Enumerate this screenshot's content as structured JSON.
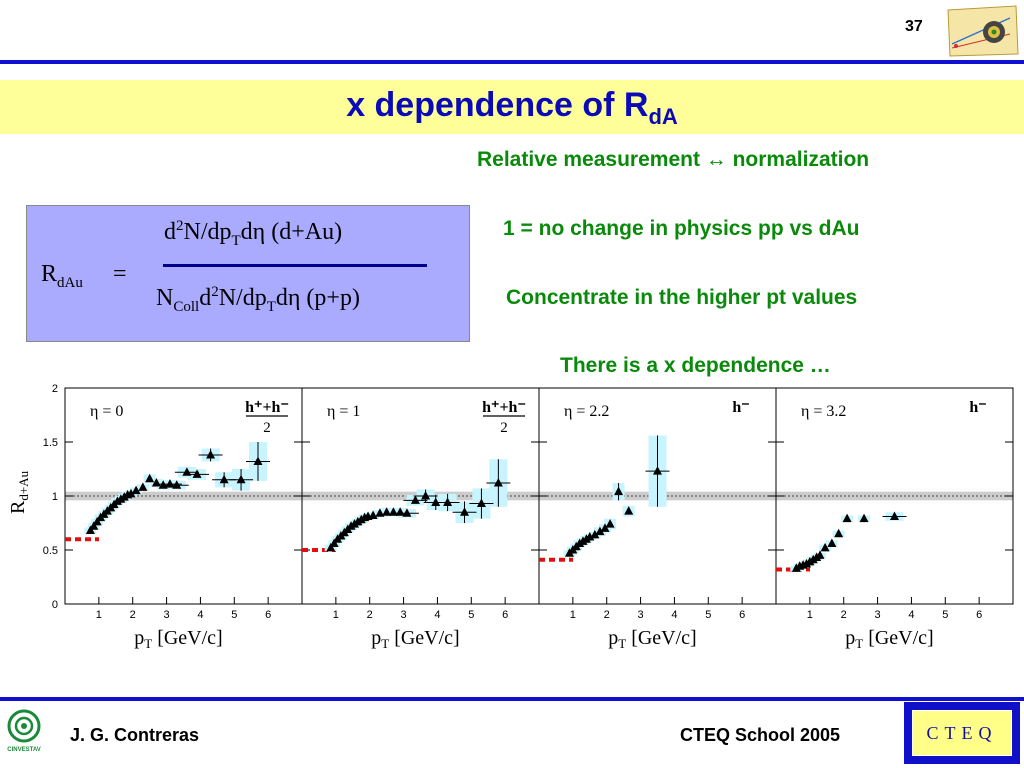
{
  "slide": {
    "number": "37",
    "title_main": "x dependence of R",
    "title_sub": "dA"
  },
  "notes": {
    "line1": "Relative measurement ↔ normalization",
    "line2": "1 = no change in physics pp vs dAu",
    "line3": "Concentrate in the higher pt values",
    "line4": "There is a x dependence …"
  },
  "formula": {
    "lhs_main": "R",
    "lhs_sub": "dAu",
    "equals": "=",
    "num_a": "d",
    "num_sup": "2",
    "num_b": "N/dp",
    "num_sub": "T",
    "num_c": "dη (d+Au)",
    "den_a": "N",
    "den_sub1": "Coll",
    "den_b": "d",
    "den_sup": "2",
    "den_c": "N/dp",
    "den_sub2": "T",
    "den_d": "dη (p+p)"
  },
  "footer": {
    "author": "J. G. Contreras",
    "event": "CTEQ School 2005",
    "logo_text": "CTEQ",
    "cinvestav_text": "CINVESTAV"
  },
  "colors": {
    "accent_blue": "#1010d0",
    "title_band": "#ffff99",
    "note_green": "#0a8a0a",
    "formula_bg": "#aaaaff",
    "error_box": "#c8f4ff",
    "ref_band": "#cccccc",
    "norm_marker": "#e01010"
  },
  "chart_data": {
    "type": "scatter",
    "ylabel": "R",
    "ylabel_sub": "d+Au",
    "xlabel": "p",
    "xlabel_sub": "T",
    "xlabel_unit": " [GeV/c]",
    "ylim": [
      0,
      2
    ],
    "xlim": [
      0,
      7
    ],
    "y_ticks": [
      0,
      0.5,
      1,
      1.5,
      2
    ],
    "x_ticks": [
      1,
      2,
      3,
      4,
      5,
      6
    ],
    "grid": false,
    "reference_line": 1,
    "panels": [
      {
        "label": "η = 0",
        "particle_num": "h⁺+h⁻",
        "particle_den": "2",
        "norm_level": 0.6,
        "points": [
          {
            "x": 0.75,
            "y": 0.68,
            "err": 0.03
          },
          {
            "x": 0.85,
            "y": 0.72,
            "err": 0.03
          },
          {
            "x": 0.95,
            "y": 0.76,
            "err": 0.03
          },
          {
            "x": 1.05,
            "y": 0.8,
            "err": 0.03
          },
          {
            "x": 1.15,
            "y": 0.83,
            "err": 0.03
          },
          {
            "x": 1.25,
            "y": 0.86,
            "err": 0.03
          },
          {
            "x": 1.35,
            "y": 0.89,
            "err": 0.03
          },
          {
            "x": 1.45,
            "y": 0.92,
            "err": 0.03
          },
          {
            "x": 1.55,
            "y": 0.95,
            "err": 0.03
          },
          {
            "x": 1.65,
            "y": 0.97,
            "err": 0.03
          },
          {
            "x": 1.75,
            "y": 0.99,
            "err": 0.03
          },
          {
            "x": 1.85,
            "y": 1.01,
            "err": 0.03
          },
          {
            "x": 1.95,
            "y": 1.02,
            "err": 0.03
          },
          {
            "x": 2.1,
            "y": 1.05,
            "err": 0.03
          },
          {
            "x": 2.3,
            "y": 1.08,
            "err": 0.03
          },
          {
            "x": 2.5,
            "y": 1.16,
            "err": 0.04
          },
          {
            "x": 2.7,
            "y": 1.12,
            "err": 0.04
          },
          {
            "x": 2.9,
            "y": 1.1,
            "err": 0.04
          },
          {
            "x": 3.1,
            "y": 1.11,
            "err": 0.04
          },
          {
            "x": 3.3,
            "y": 1.1,
            "err": 0.04
          },
          {
            "x": 3.6,
            "y": 1.22,
            "err": 0.05
          },
          {
            "x": 3.9,
            "y": 1.2,
            "err": 0.05
          },
          {
            "x": 4.3,
            "y": 1.38,
            "err": 0.06
          },
          {
            "x": 4.7,
            "y": 1.15,
            "err": 0.07
          },
          {
            "x": 5.2,
            "y": 1.15,
            "err": 0.1
          },
          {
            "x": 5.7,
            "y": 1.32,
            "err": 0.18
          }
        ]
      },
      {
        "label": "η = 1",
        "particle_num": "h⁺+h⁻",
        "particle_den": "2",
        "norm_level": 0.5,
        "points": [
          {
            "x": 0.85,
            "y": 0.52,
            "err": 0.03
          },
          {
            "x": 0.95,
            "y": 0.56,
            "err": 0.03
          },
          {
            "x": 1.05,
            "y": 0.6,
            "err": 0.03
          },
          {
            "x": 1.15,
            "y": 0.63,
            "err": 0.03
          },
          {
            "x": 1.25,
            "y": 0.66,
            "err": 0.03
          },
          {
            "x": 1.35,
            "y": 0.69,
            "err": 0.03
          },
          {
            "x": 1.45,
            "y": 0.72,
            "err": 0.03
          },
          {
            "x": 1.55,
            "y": 0.74,
            "err": 0.03
          },
          {
            "x": 1.65,
            "y": 0.76,
            "err": 0.03
          },
          {
            "x": 1.75,
            "y": 0.78,
            "err": 0.03
          },
          {
            "x": 1.85,
            "y": 0.8,
            "err": 0.03
          },
          {
            "x": 1.95,
            "y": 0.81,
            "err": 0.03
          },
          {
            "x": 2.1,
            "y": 0.82,
            "err": 0.03
          },
          {
            "x": 2.3,
            "y": 0.84,
            "err": 0.03
          },
          {
            "x": 2.5,
            "y": 0.85,
            "err": 0.04
          },
          {
            "x": 2.7,
            "y": 0.85,
            "err": 0.04
          },
          {
            "x": 2.9,
            "y": 0.85,
            "err": 0.04
          },
          {
            "x": 3.1,
            "y": 0.84,
            "err": 0.04
          },
          {
            "x": 3.35,
            "y": 0.96,
            "err": 0.05
          },
          {
            "x": 3.65,
            "y": 1.0,
            "err": 0.06
          },
          {
            "x": 3.95,
            "y": 0.94,
            "err": 0.07
          },
          {
            "x": 4.3,
            "y": 0.94,
            "err": 0.08
          },
          {
            "x": 4.8,
            "y": 0.85,
            "err": 0.1
          },
          {
            "x": 5.3,
            "y": 0.93,
            "err": 0.14
          },
          {
            "x": 5.8,
            "y": 1.12,
            "err": 0.22
          }
        ]
      },
      {
        "label": "η = 2.2",
        "particle_num": "h⁻",
        "particle_den": "",
        "norm_level": 0.41,
        "points": [
          {
            "x": 0.9,
            "y": 0.47,
            "err": 0.03
          },
          {
            "x": 1.0,
            "y": 0.5,
            "err": 0.03
          },
          {
            "x": 1.1,
            "y": 0.53,
            "err": 0.03
          },
          {
            "x": 1.2,
            "y": 0.56,
            "err": 0.03
          },
          {
            "x": 1.3,
            "y": 0.58,
            "err": 0.03
          },
          {
            "x": 1.4,
            "y": 0.6,
            "err": 0.03
          },
          {
            "x": 1.5,
            "y": 0.62,
            "err": 0.03
          },
          {
            "x": 1.65,
            "y": 0.64,
            "err": 0.03
          },
          {
            "x": 1.8,
            "y": 0.67,
            "err": 0.04
          },
          {
            "x": 1.95,
            "y": 0.7,
            "err": 0.04
          },
          {
            "x": 2.1,
            "y": 0.74,
            "err": 0.05
          },
          {
            "x": 2.35,
            "y": 1.04,
            "err": 0.08
          },
          {
            "x": 2.65,
            "y": 0.86,
            "err": 0.05
          },
          {
            "x": 3.5,
            "y": 1.23,
            "err": 0.33
          }
        ]
      },
      {
        "label": "η = 3.2",
        "particle_num": "h⁻",
        "particle_den": "",
        "norm_level": 0.32,
        "points": [
          {
            "x": 0.6,
            "y": 0.33,
            "err": 0.02
          },
          {
            "x": 0.7,
            "y": 0.35,
            "err": 0.02
          },
          {
            "x": 0.8,
            "y": 0.36,
            "err": 0.02
          },
          {
            "x": 0.9,
            "y": 0.37,
            "err": 0.02
          },
          {
            "x": 1.0,
            "y": 0.39,
            "err": 0.02
          },
          {
            "x": 1.1,
            "y": 0.41,
            "err": 0.02
          },
          {
            "x": 1.2,
            "y": 0.43,
            "err": 0.02
          },
          {
            "x": 1.3,
            "y": 0.45,
            "err": 0.02
          },
          {
            "x": 1.45,
            "y": 0.52,
            "err": 0.03
          },
          {
            "x": 1.65,
            "y": 0.56,
            "err": 0.03
          },
          {
            "x": 1.85,
            "y": 0.65,
            "err": 0.03
          },
          {
            "x": 2.1,
            "y": 0.79,
            "err": 0.03
          },
          {
            "x": 2.6,
            "y": 0.79,
            "err": 0.03
          },
          {
            "x": 3.5,
            "y": 0.81,
            "err": 0.04
          }
        ]
      }
    ]
  }
}
